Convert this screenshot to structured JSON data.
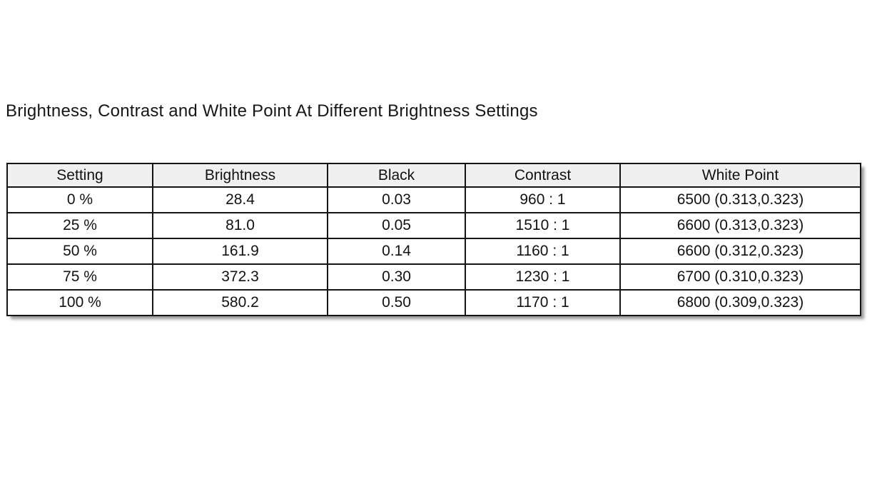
{
  "colors": {
    "page_background": "#ffffff",
    "header_background": "#f0f0f0",
    "table_border": "#141414",
    "text": "#121212"
  },
  "chart_data": {
    "type": "table",
    "title": "Brightness, Contrast and White Point At Different Brightness Settings",
    "columns": [
      "Setting",
      "Brightness",
      "Black",
      "Contrast",
      "White Point"
    ],
    "rows": [
      [
        "0 %",
        "28.4",
        "0.03",
        "960 : 1",
        "6500 (0.313,0.323)"
      ],
      [
        "25 %",
        "81.0",
        "0.05",
        "1510 : 1",
        "6600 (0.313,0.323)"
      ],
      [
        "50 %",
        "161.9",
        "0.14",
        "1160 : 1",
        "6600 (0.312,0.323)"
      ],
      [
        "75 %",
        "372.3",
        "0.30",
        "1230 : 1",
        "6700 (0.310,0.323)"
      ],
      [
        "100 %",
        "580.2",
        "0.50",
        "1170 : 1",
        "6800 (0.309,0.323)"
      ]
    ],
    "layout": {
      "legend": "none",
      "grid": "full-borders",
      "header_row": true
    }
  }
}
